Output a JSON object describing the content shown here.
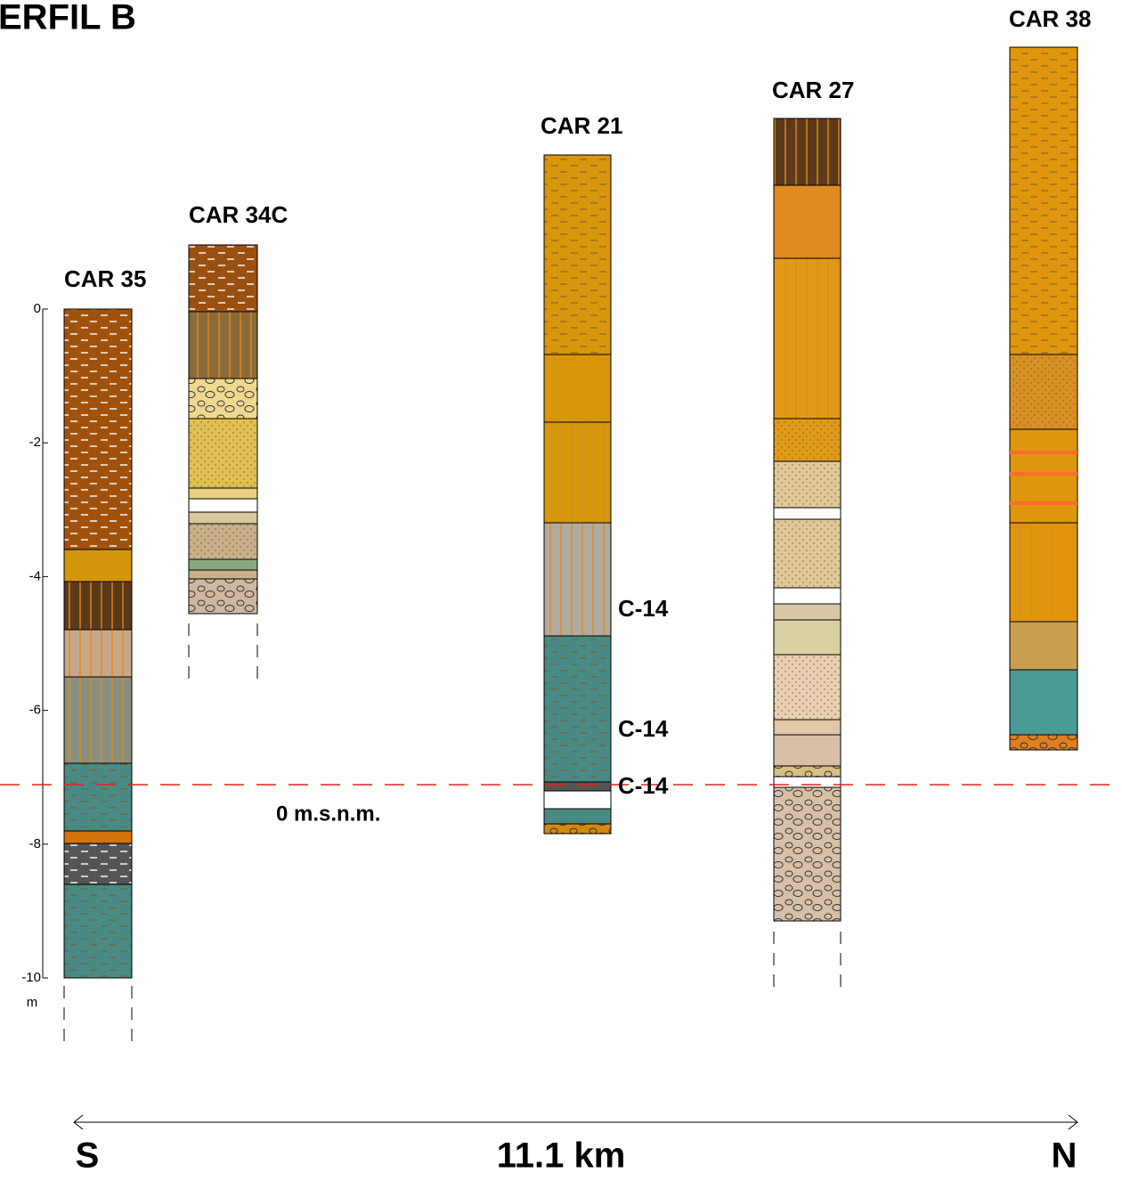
{
  "title": "ERFIL B",
  "depth_axis": {
    "ticks": [
      0,
      -2,
      -4,
      -6,
      -8,
      -10
    ],
    "unit": "m"
  },
  "columns": [
    {
      "label": "CAR 35"
    },
    {
      "label": "CAR 34C"
    },
    {
      "label": "CAR 21"
    },
    {
      "label": "CAR 27"
    },
    {
      "label": "CAR 38"
    }
  ],
  "samples": [
    "C-14",
    "C-14",
    "C-14"
  ],
  "datum_label": "0 m.s.n.m.",
  "transect": {
    "south": "S",
    "distance": "11.1 km",
    "north": "N"
  }
}
